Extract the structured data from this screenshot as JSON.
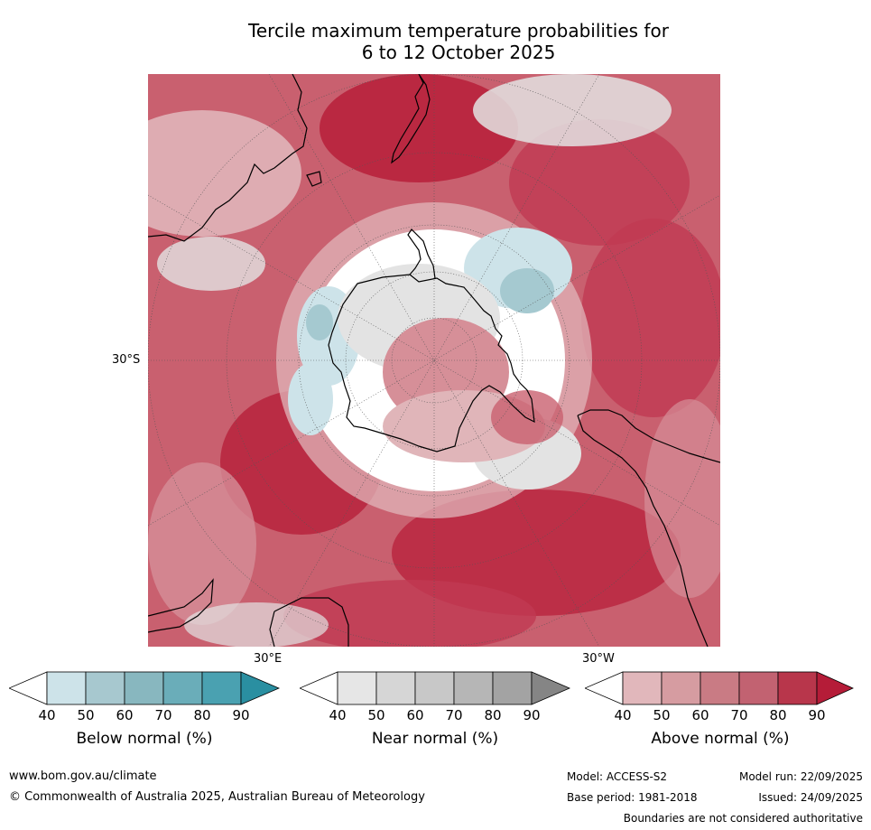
{
  "title": {
    "line1": "Tercile maximum temperature probabilities for",
    "line2": "6 to 12 October 2025"
  },
  "map": {
    "projection": "south-polar-stereographic",
    "lat_label": "30°S",
    "lon_labels": {
      "east": "30°E",
      "west": "30°W"
    },
    "colors": {
      "above_90": "#b71f3a",
      "above_80": "#c13a52",
      "above_70": "#c9606f",
      "above_60": "#d68f98",
      "above_50": "#e0b5b9",
      "near_50": "#e3e3e3",
      "below_50": "#cde3e9",
      "below_60": "#a5c9d0",
      "ocean_white": "#ffffff"
    }
  },
  "colorbars": [
    {
      "label": "Below normal (%)",
      "ticks": [
        "40",
        "50",
        "60",
        "70",
        "80",
        "90"
      ],
      "colors": [
        "#ffffff",
        "#cde3e9",
        "#a7c8cf",
        "#88b7bf",
        "#6aadb9",
        "#4aa1b1",
        "#2a8fa1"
      ]
    },
    {
      "label": "Near normal (%)",
      "ticks": [
        "40",
        "50",
        "60",
        "70",
        "80",
        "90"
      ],
      "colors": [
        "#ffffff",
        "#e6e6e6",
        "#d6d6d6",
        "#c8c8c8",
        "#b6b6b6",
        "#a3a3a3",
        "#858585"
      ]
    },
    {
      "label": "Above normal (%)",
      "ticks": [
        "40",
        "50",
        "60",
        "70",
        "80",
        "90"
      ],
      "colors": [
        "#ffffff",
        "#e1b7bb",
        "#d69ca1",
        "#c97b84",
        "#c26271",
        "#b8364b",
        "#b51c38"
      ]
    }
  ],
  "footer": {
    "website": "www.bom.gov.au/climate",
    "copyright": "© Commonwealth of Australia 2025, Australian Bureau of Meteorology",
    "model": "Model: ACCESS-S2",
    "base_period": "Base period: 1981-2018",
    "model_run": "Model run: 22/09/2025",
    "issued": "Issued: 24/09/2025",
    "disclaimer": "Boundaries are not considered authoritative"
  }
}
